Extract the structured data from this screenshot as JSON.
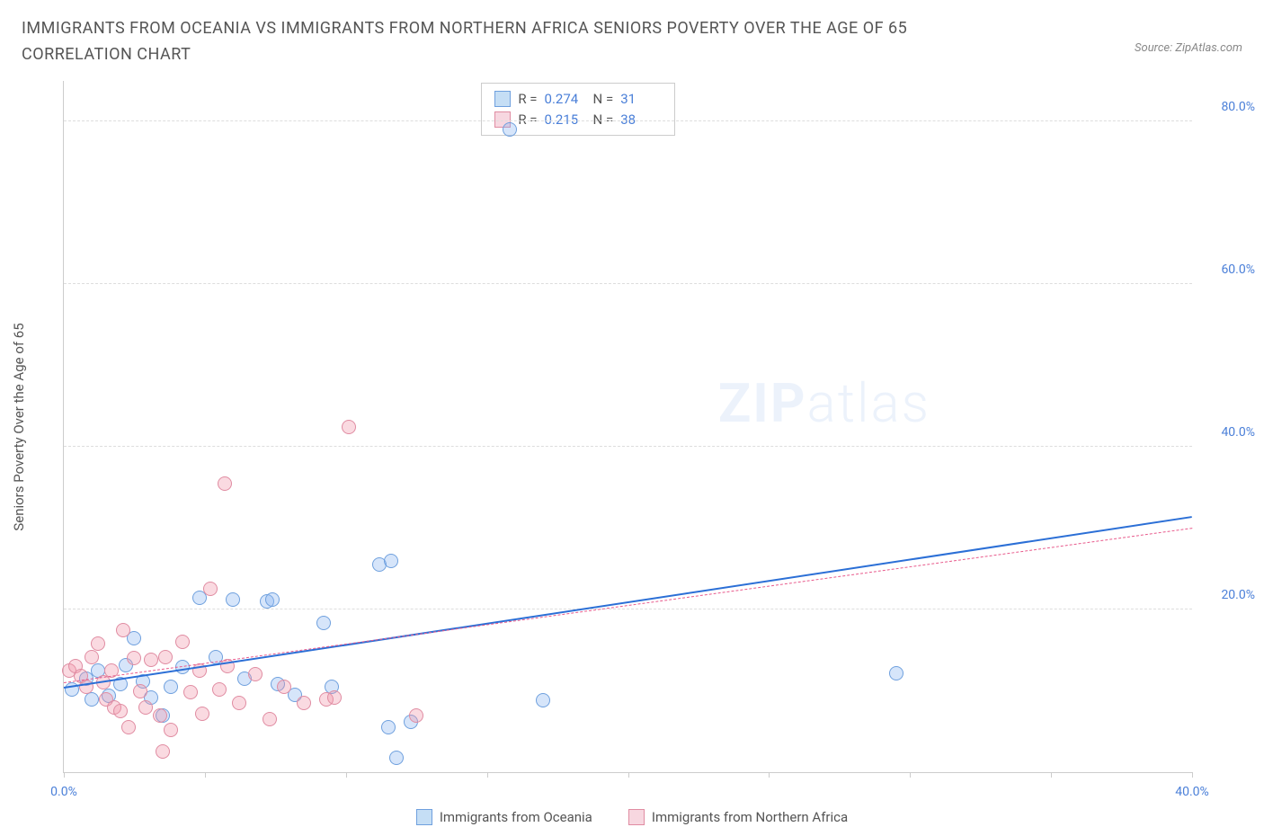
{
  "title": "IMMIGRANTS FROM OCEANIA VS IMMIGRANTS FROM NORTHERN AFRICA SENIORS POVERTY OVER THE AGE OF 65 CORRELATION CHART",
  "source": "Source: ZipAtlas.com",
  "watermark_bold": "ZIP",
  "watermark_light": "atlas",
  "chart": {
    "type": "scatter",
    "y_axis_title": "Seniors Poverty Over the Age of 65",
    "xlim": [
      0,
      40
    ],
    "ylim": [
      0,
      85
    ],
    "x_ticks": [
      0,
      5,
      10,
      15,
      20,
      25,
      30,
      35,
      40
    ],
    "x_tick_labels": {
      "0": "0.0%",
      "40": "40.0%"
    },
    "y_ticks": [
      20,
      40,
      60,
      80
    ],
    "y_tick_labels": {
      "20": "20.0%",
      "40": "40.0%",
      "60": "60.0%",
      "80": "80.0%"
    },
    "background_color": "#ffffff",
    "grid_color": "#dddddd",
    "axis_color": "#cccccc",
    "tick_label_color": "#4a7fd8"
  },
  "series": [
    {
      "name": "Immigrants from Oceania",
      "fill": "rgba(137, 180, 240, 0.35)",
      "stroke": "#6fa0de",
      "swatch_fill": "#c5def5",
      "swatch_border": "#6fa0de",
      "marker_radius": 8,
      "R_label": "R =",
      "R": "0.274",
      "N_label": "N =",
      "N": "31",
      "trend": {
        "x1": 0,
        "y1": 10.5,
        "x2": 40,
        "y2": 31.5,
        "color": "#2b6fd6",
        "width": 2
      },
      "points": [
        {
          "x": 0.3,
          "y": 10.2
        },
        {
          "x": 0.8,
          "y": 11.5
        },
        {
          "x": 1.0,
          "y": 9.0
        },
        {
          "x": 1.2,
          "y": 12.5
        },
        {
          "x": 1.6,
          "y": 9.4
        },
        {
          "x": 2.0,
          "y": 10.8
        },
        {
          "x": 2.2,
          "y": 13.2
        },
        {
          "x": 2.5,
          "y": 16.5
        },
        {
          "x": 2.8,
          "y": 11.2
        },
        {
          "x": 3.1,
          "y": 9.2
        },
        {
          "x": 3.5,
          "y": 7.0
        },
        {
          "x": 3.8,
          "y": 10.5
        },
        {
          "x": 4.2,
          "y": 12.9
        },
        {
          "x": 4.8,
          "y": 21.5
        },
        {
          "x": 5.4,
          "y": 14.2
        },
        {
          "x": 6.0,
          "y": 21.2
        },
        {
          "x": 6.4,
          "y": 11.5
        },
        {
          "x": 7.2,
          "y": 21.0
        },
        {
          "x": 7.4,
          "y": 21.2
        },
        {
          "x": 7.6,
          "y": 10.8
        },
        {
          "x": 8.2,
          "y": 9.5
        },
        {
          "x": 9.2,
          "y": 18.3
        },
        {
          "x": 9.5,
          "y": 10.5
        },
        {
          "x": 11.2,
          "y": 25.5
        },
        {
          "x": 11.6,
          "y": 26.0
        },
        {
          "x": 11.8,
          "y": 1.8
        },
        {
          "x": 12.3,
          "y": 6.2
        },
        {
          "x": 15.8,
          "y": 79.0
        },
        {
          "x": 17.0,
          "y": 8.8
        },
        {
          "x": 29.5,
          "y": 12.2
        },
        {
          "x": 11.5,
          "y": 5.5
        }
      ]
    },
    {
      "name": "Immigrants from Northern Africa",
      "fill": "rgba(240, 150, 170, 0.35)",
      "stroke": "#e08ca2",
      "swatch_fill": "#f7d7e0",
      "swatch_border": "#e08ca2",
      "marker_radius": 8,
      "R_label": "R =",
      "R": "0.215",
      "N_label": "N =",
      "N": "38",
      "trend": {
        "x1": 0,
        "y1": 11.0,
        "x2": 40,
        "y2": 30.0,
        "color": "#e85a8c",
        "width": 1,
        "dashed": true
      },
      "points": [
        {
          "x": 0.2,
          "y": 12.5
        },
        {
          "x": 0.4,
          "y": 13.0
        },
        {
          "x": 0.6,
          "y": 11.8
        },
        {
          "x": 0.8,
          "y": 10.5
        },
        {
          "x": 1.0,
          "y": 14.2
        },
        {
          "x": 1.2,
          "y": 15.8
        },
        {
          "x": 1.4,
          "y": 11.0
        },
        {
          "x": 1.5,
          "y": 9.0
        },
        {
          "x": 1.7,
          "y": 12.5
        },
        {
          "x": 1.8,
          "y": 8.0
        },
        {
          "x": 2.0,
          "y": 7.5
        },
        {
          "x": 2.1,
          "y": 17.5
        },
        {
          "x": 2.3,
          "y": 5.5
        },
        {
          "x": 2.5,
          "y": 14.0
        },
        {
          "x": 2.7,
          "y": 10.0
        },
        {
          "x": 2.9,
          "y": 8.0
        },
        {
          "x": 3.1,
          "y": 13.8
        },
        {
          "x": 3.4,
          "y": 7.0
        },
        {
          "x": 3.6,
          "y": 14.2
        },
        {
          "x": 3.8,
          "y": 5.2
        },
        {
          "x": 4.2,
          "y": 16.0
        },
        {
          "x": 4.5,
          "y": 9.8
        },
        {
          "x": 4.8,
          "y": 12.5
        },
        {
          "x": 4.9,
          "y": 7.2
        },
        {
          "x": 5.2,
          "y": 22.5
        },
        {
          "x": 5.5,
          "y": 10.2
        },
        {
          "x": 5.7,
          "y": 35.5
        },
        {
          "x": 5.8,
          "y": 13.0
        },
        {
          "x": 6.2,
          "y": 8.5
        },
        {
          "x": 6.8,
          "y": 12.0
        },
        {
          "x": 7.3,
          "y": 6.5
        },
        {
          "x": 7.8,
          "y": 10.5
        },
        {
          "x": 8.5,
          "y": 8.5
        },
        {
          "x": 9.3,
          "y": 9.0
        },
        {
          "x": 9.6,
          "y": 9.2
        },
        {
          "x": 10.1,
          "y": 42.5
        },
        {
          "x": 12.5,
          "y": 7.0
        },
        {
          "x": 3.5,
          "y": 2.5
        }
      ]
    }
  ],
  "bottom_legend": [
    {
      "label": "Immigrants from Oceania",
      "swatch_fill": "#c5def5",
      "swatch_border": "#6fa0de"
    },
    {
      "label": "Immigrants from Northern Africa",
      "swatch_fill": "#f7d7e0",
      "swatch_border": "#e08ca2"
    }
  ]
}
